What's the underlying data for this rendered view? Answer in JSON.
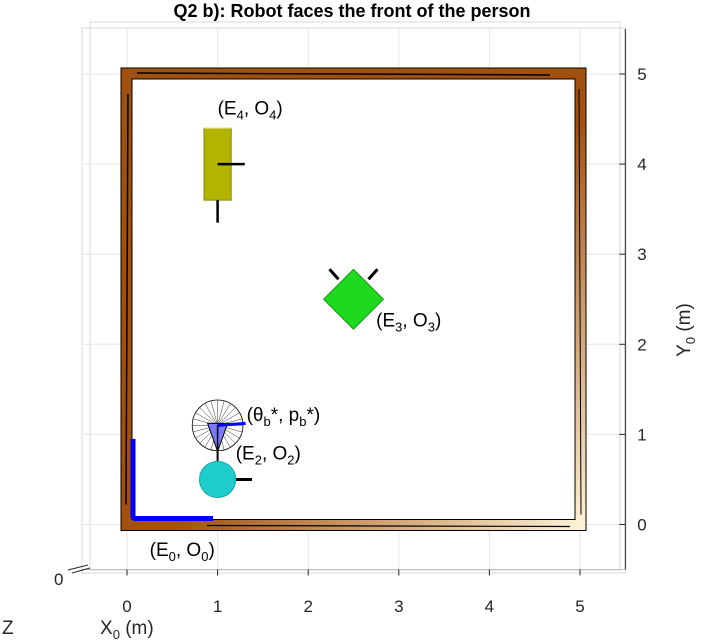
{
  "chart_data": {
    "type": "scatter",
    "title": "Q2 b): Robot faces the front of the person",
    "xlabel": "X",
    "xlabel_sub": "0",
    "xlabel_unit": " (m)",
    "ylabel": "Y",
    "ylabel_sub": "0",
    "ylabel_unit": " (m)",
    "zlabel": "Z",
    "z_tick": "0",
    "xlim": [
      -0.5,
      5.5
    ],
    "ylim": [
      -0.5,
      5.5
    ],
    "x_ticks": [
      0,
      1,
      2,
      3,
      4,
      5
    ],
    "y_ticks": [
      0,
      1,
      2,
      3,
      4,
      5
    ],
    "grid": true,
    "colors": {
      "wall_dark": "#a0500f",
      "wall_light": "#fff6da",
      "frame_axis": "#0000ff",
      "cabinet": "#b3b300",
      "cube": "#1fd91f",
      "person": "#1fcccc",
      "robot": "#7a7aff"
    },
    "annotations": [
      {
        "base": "(E",
        "sub1": "0",
        "mid": ", O",
        "sub2": "0",
        "end": ")",
        "x": 0.25,
        "y": -0.35
      },
      {
        "base": "(E",
        "sub1": "2",
        "mid": ", O",
        "sub2": "2",
        "end": ")",
        "x": 1.2,
        "y": 0.72
      },
      {
        "base": "(E",
        "sub1": "3",
        "mid": ", O",
        "sub2": "3",
        "end": ")",
        "x": 2.75,
        "y": 2.2
      },
      {
        "base": "(E",
        "sub1": "4",
        "mid": ", O",
        "sub2": "4",
        "end": ")",
        "x": 1.0,
        "y": 4.55
      }
    ],
    "robot_label": {
      "open": "(θ",
      "sub1": "b",
      "mid": "*, p",
      "sub2": "b",
      "end": "*)",
      "x": 1.32,
      "y": 1.15
    },
    "objects": [
      {
        "name": "room",
        "kind": "square",
        "x": [
          0,
          5
        ],
        "y": [
          0,
          5
        ]
      },
      {
        "name": "E0",
        "kind": "frame",
        "x": 0,
        "y": 0
      },
      {
        "name": "E2",
        "kind": "circle",
        "x": 1.0,
        "y": 0.5,
        "r": 0.2
      },
      {
        "name": "E3",
        "kind": "rotated-square",
        "x": 2.5,
        "y": 2.5,
        "half": 0.33
      },
      {
        "name": "E4",
        "kind": "rectangle",
        "x": [
          0.85,
          1.15
        ],
        "y": [
          3.6,
          4.4
        ]
      },
      {
        "name": "robot",
        "kind": "grasp-sphere",
        "x": 1.0,
        "y": 1.1,
        "r": 0.28
      }
    ]
  }
}
